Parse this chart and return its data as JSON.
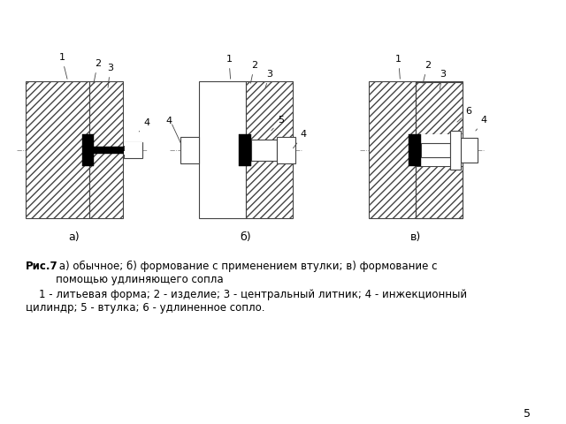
{
  "bg_color": "#ffffff",
  "line_color": "#444444",
  "caption_bold": "Рис.7",
  "caption_text": " а) обычное; б) формование с применением втулки; в) формование с\nпомощью удлиняющего сопла",
  "caption2": "    1 - литьевая форма; 2 - изделие; 3 - центральный литник; 4 - инжекционный\nцилиндр; 5 - втулка; 6 - удлиненное сопло.",
  "page_num": "5",
  "label_a": "а)",
  "label_b": "б)",
  "label_c": "в)",
  "fontsize_labels": 9,
  "fontsize_caption": 8.5,
  "fontsize_numbers": 8
}
